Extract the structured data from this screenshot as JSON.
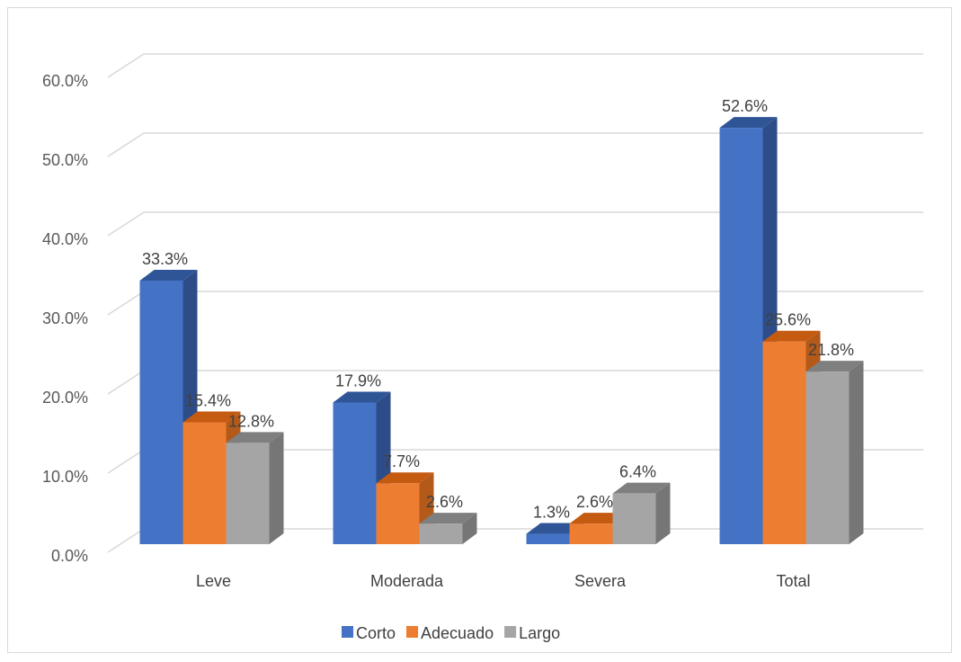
{
  "chart_data": {
    "type": "bar",
    "variant": "3d-clustered-column",
    "title": "",
    "xlabel": "",
    "ylabel": "",
    "categories": [
      "Leve",
      "Moderada",
      "Severa",
      "Total"
    ],
    "series": [
      {
        "name": "Corto",
        "values": [
          33.3,
          17.9,
          1.3,
          52.6
        ],
        "labels": [
          "33.3%",
          "17.9%",
          "1.3%",
          "52.6%"
        ],
        "color": "#4472c4",
        "side": "#2e4d88",
        "top": "#2f5597"
      },
      {
        "name": "Adecuado",
        "values": [
          15.4,
          7.7,
          2.6,
          25.6
        ],
        "labels": [
          "15.4%",
          "7.7%",
          "2.6%",
          "25.6%"
        ],
        "color": "#ed7d31",
        "side": "#b35a1a",
        "top": "#c55a11"
      },
      {
        "name": "Largo",
        "values": [
          12.8,
          2.6,
          6.4,
          21.8
        ],
        "labels": [
          "12.8%",
          "2.6%",
          "6.4%",
          "21.8%"
        ],
        "color": "#a5a5a5",
        "side": "#767676",
        "top": "#7f7f7f"
      }
    ],
    "ylim": [
      0,
      60
    ],
    "yticks": [
      0,
      10,
      20,
      30,
      40,
      50,
      60
    ],
    "ytick_labels": [
      "0.0%",
      "10.0%",
      "20.0%",
      "30.0%",
      "40.0%",
      "50.0%",
      "60.0%"
    ],
    "grid": true,
    "legend_position": "bottom"
  }
}
